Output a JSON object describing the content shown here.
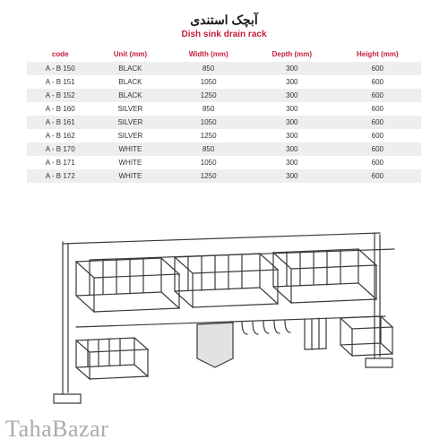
{
  "title_fa": "آبچک استندی",
  "title_en": "Dish sink drain rack",
  "table": {
    "columns": [
      "code",
      "Unit (mm)",
      "Width (mm)",
      "Depth (mm)",
      "Height (mm)"
    ],
    "rows": [
      [
        "A - B 150",
        "BLACK",
        "850",
        "300",
        "600"
      ],
      [
        "A - B 151",
        "BLACK",
        "1050",
        "300",
        "600"
      ],
      [
        "A - B 152",
        "BLACK",
        "1250",
        "300",
        "600"
      ],
      [
        "A - B 160",
        "SILVER",
        "850",
        "300",
        "600"
      ],
      [
        "A - B 161",
        "SILVER",
        "1050",
        "300",
        "600"
      ],
      [
        "A - B 162",
        "SILVER",
        "1250",
        "300",
        "600"
      ],
      [
        "A - B 170",
        "WHITE",
        "850",
        "300",
        "600"
      ],
      [
        "A - B 171",
        "WHITE",
        "1050",
        "300",
        "600"
      ],
      [
        "A - B 172",
        "WHITE",
        "1250",
        "300",
        "600"
      ]
    ],
    "header_color": "#c41e3a",
    "stripe_color": "#eeeeee",
    "text_color": "#333333",
    "font_size": 8
  },
  "illustration": {
    "stroke": "#3a3a3a",
    "stroke_width": 1.2
  },
  "watermark": "TahaBazar"
}
